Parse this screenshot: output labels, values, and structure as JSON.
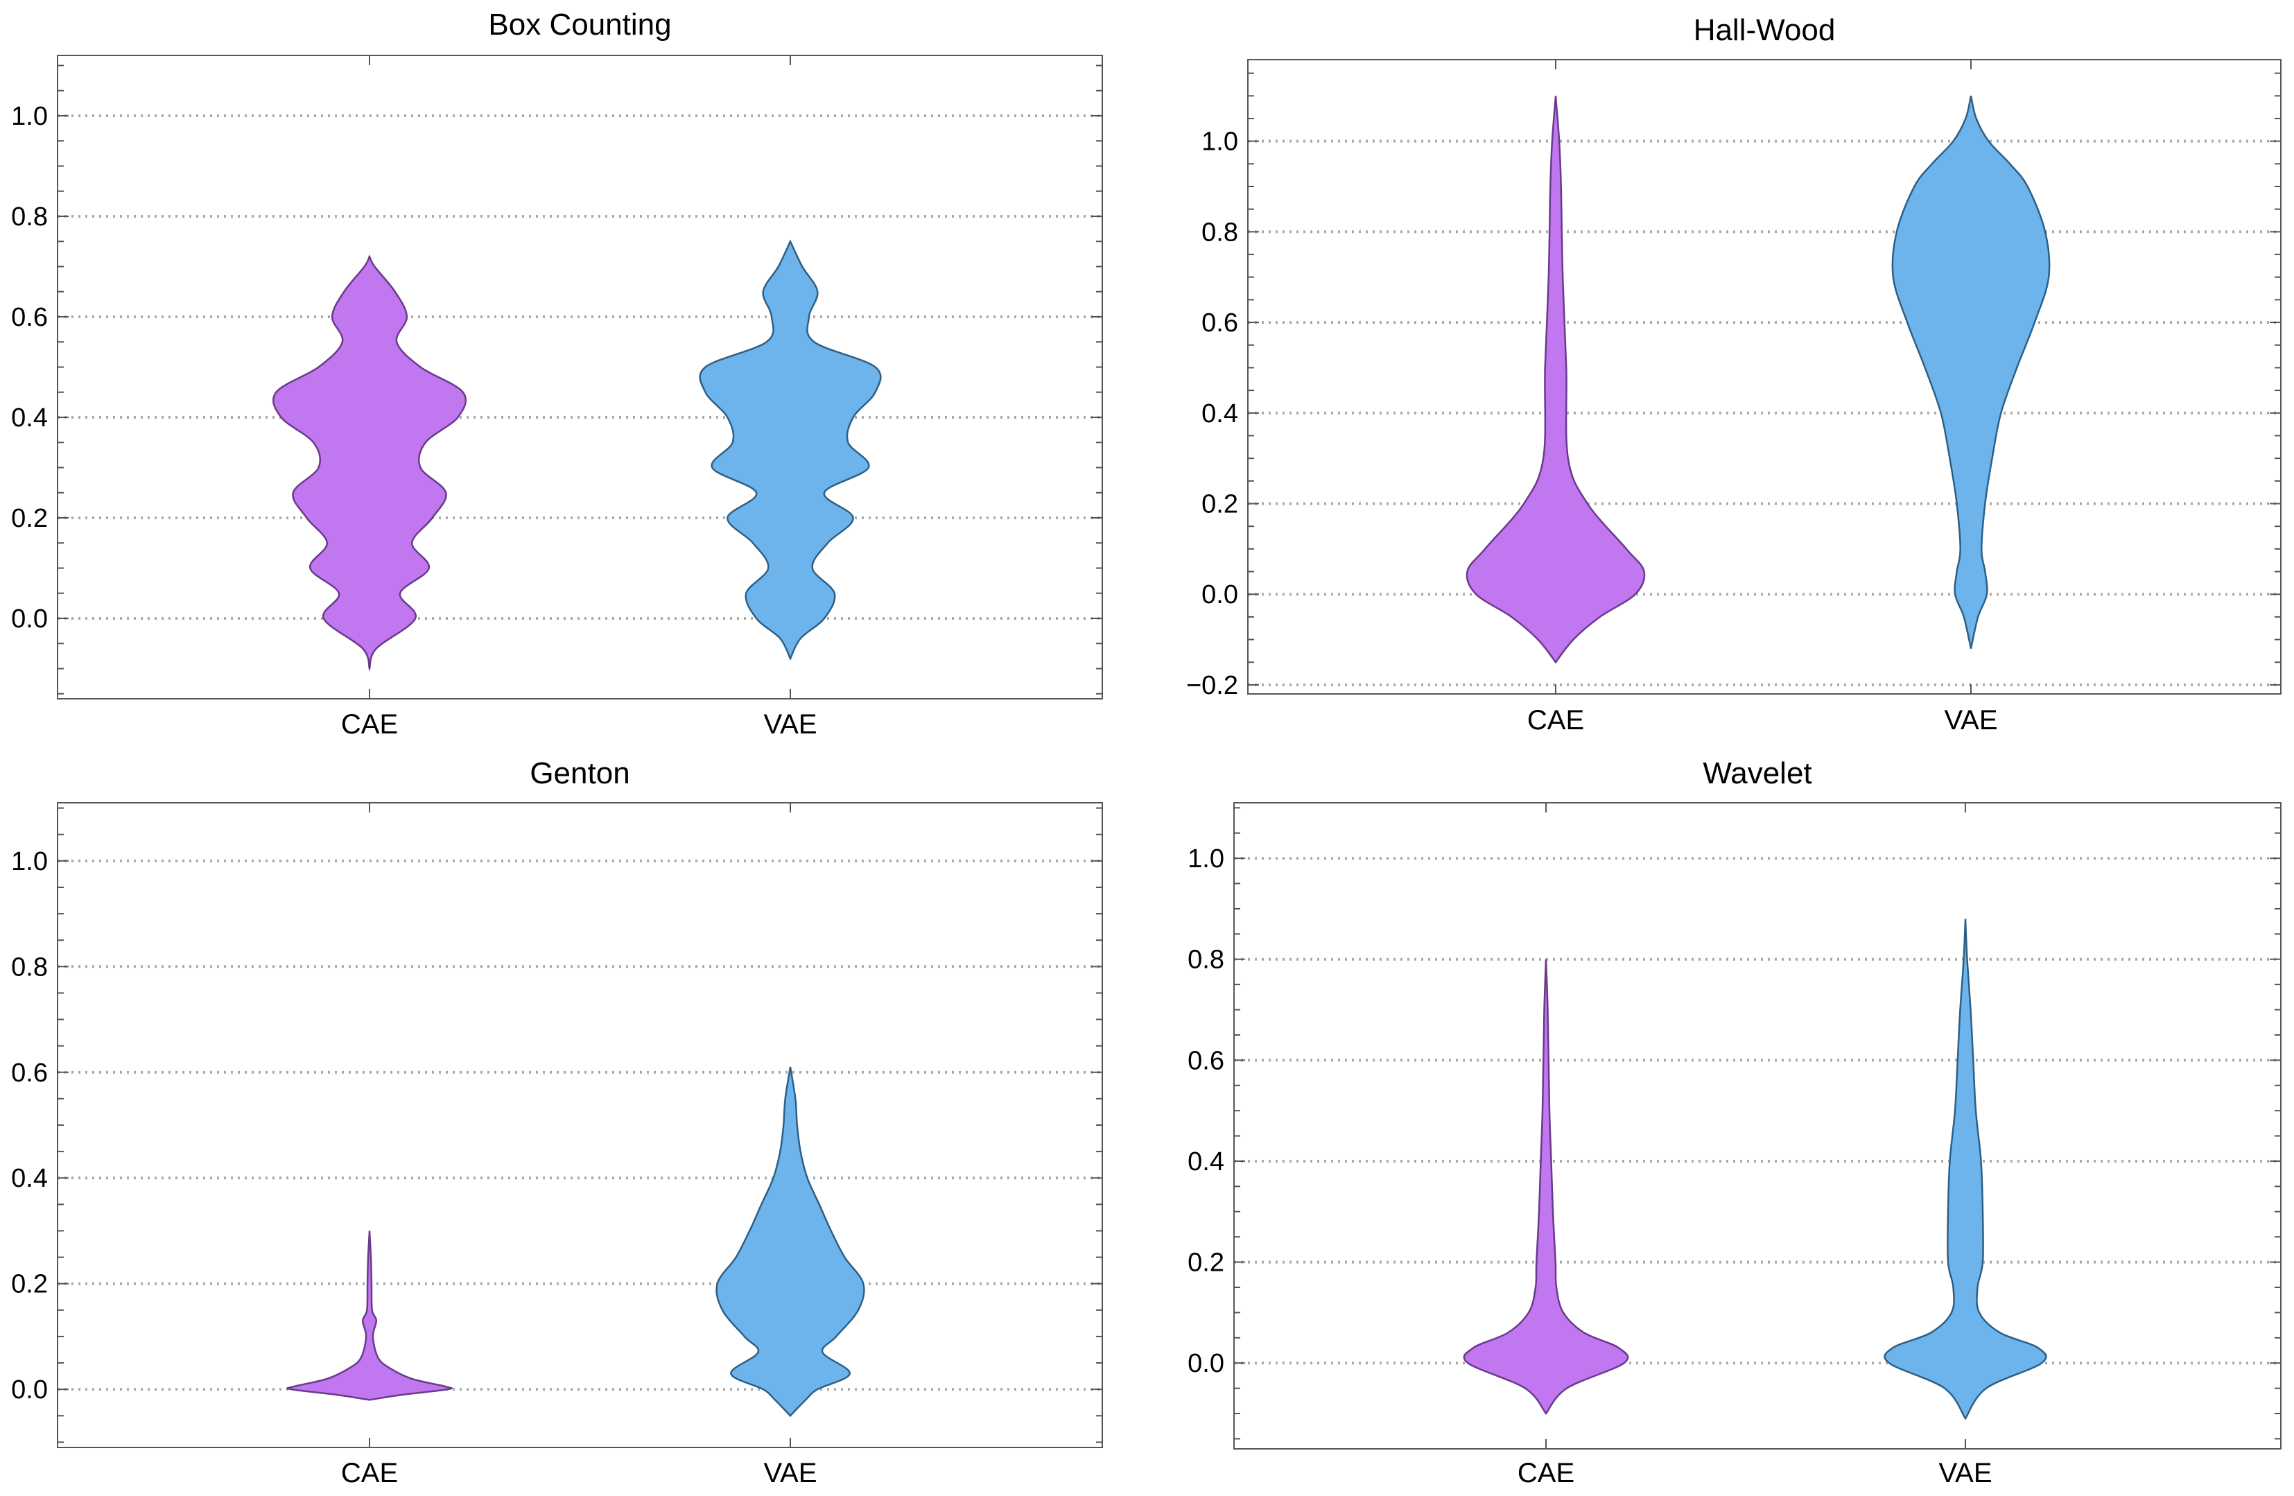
{
  "chart_data": [
    {
      "type": "violin",
      "title": "Box Counting",
      "categories": [
        "CAE",
        "VAE"
      ],
      "ylim": [
        -0.16,
        1.12
      ],
      "yticks": [
        0.0,
        0.2,
        0.4,
        0.6,
        0.8,
        1.0
      ],
      "ytick_labels": [
        "0.0",
        "0.2",
        "0.4",
        "0.6",
        "0.8",
        "1.0"
      ],
      "grid": true,
      "series": [
        {
          "name": "CAE",
          "color": "#c077f0",
          "stroke": "#6a3a8a",
          "profile": [
            [
              -0.1,
              0
            ],
            [
              -0.06,
              0.04
            ],
            [
              0.0,
              0.27
            ],
            [
              0.05,
              0.18
            ],
            [
              0.1,
              0.35
            ],
            [
              0.15,
              0.25
            ],
            [
              0.2,
              0.37
            ],
            [
              0.25,
              0.45
            ],
            [
              0.3,
              0.3
            ],
            [
              0.35,
              0.33
            ],
            [
              0.4,
              0.52
            ],
            [
              0.45,
              0.55
            ],
            [
              0.5,
              0.3
            ],
            [
              0.55,
              0.16
            ],
            [
              0.6,
              0.22
            ],
            [
              0.65,
              0.15
            ],
            [
              0.7,
              0.03
            ],
            [
              0.72,
              0
            ]
          ]
        },
        {
          "name": "VAE",
          "color": "#6eb4ec",
          "stroke": "#2d5f85",
          "profile": [
            [
              -0.08,
              0
            ],
            [
              -0.04,
              0.06
            ],
            [
              0.0,
              0.2
            ],
            [
              0.05,
              0.26
            ],
            [
              0.1,
              0.13
            ],
            [
              0.15,
              0.22
            ],
            [
              0.2,
              0.37
            ],
            [
              0.25,
              0.2
            ],
            [
              0.3,
              0.46
            ],
            [
              0.35,
              0.34
            ],
            [
              0.4,
              0.37
            ],
            [
              0.45,
              0.5
            ],
            [
              0.5,
              0.5
            ],
            [
              0.55,
              0.14
            ],
            [
              0.6,
              0.11
            ],
            [
              0.65,
              0.16
            ],
            [
              0.7,
              0.07
            ],
            [
              0.75,
              0
            ]
          ]
        }
      ]
    },
    {
      "type": "violin",
      "title": "Hall-Wood",
      "categories": [
        "CAE",
        "VAE"
      ],
      "ylim": [
        -0.22,
        1.18
      ],
      "yticks": [
        -0.2,
        0.0,
        0.2,
        0.4,
        0.6,
        0.8,
        1.0
      ],
      "ytick_labels": [
        "−0.2",
        "0.0",
        "0.2",
        "0.4",
        "0.6",
        "0.8",
        "1.0"
      ],
      "grid": true,
      "series": [
        {
          "name": "CAE",
          "color": "#c077f0",
          "stroke": "#6a3a8a",
          "profile": [
            [
              -0.15,
              0
            ],
            [
              -0.1,
              0.1
            ],
            [
              -0.05,
              0.25
            ],
            [
              0.0,
              0.45
            ],
            [
              0.05,
              0.5
            ],
            [
              0.1,
              0.4
            ],
            [
              0.2,
              0.18
            ],
            [
              0.3,
              0.07
            ],
            [
              0.5,
              0.06
            ],
            [
              0.7,
              0.04
            ],
            [
              0.9,
              0.03
            ],
            [
              1.0,
              0.02
            ],
            [
              1.1,
              0
            ]
          ]
        },
        {
          "name": "VAE",
          "color": "#6eb4ec",
          "stroke": "#2d5f85",
          "profile": [
            [
              -0.12,
              0
            ],
            [
              -0.05,
              0.04
            ],
            [
              0.0,
              0.09
            ],
            [
              0.05,
              0.08
            ],
            [
              0.1,
              0.06
            ],
            [
              0.2,
              0.08
            ],
            [
              0.3,
              0.12
            ],
            [
              0.4,
              0.17
            ],
            [
              0.5,
              0.26
            ],
            [
              0.6,
              0.36
            ],
            [
              0.7,
              0.44
            ],
            [
              0.8,
              0.42
            ],
            [
              0.9,
              0.32
            ],
            [
              0.95,
              0.22
            ],
            [
              1.0,
              0.1
            ],
            [
              1.05,
              0.03
            ],
            [
              1.1,
              0
            ]
          ]
        }
      ]
    },
    {
      "type": "violin",
      "title": "Genton",
      "categories": [
        "CAE",
        "VAE"
      ],
      "ylim": [
        -0.11,
        1.11
      ],
      "yticks": [
        0.0,
        0.2,
        0.4,
        0.6,
        0.8,
        1.0
      ],
      "ytick_labels": [
        "0.0",
        "0.2",
        "0.4",
        "0.6",
        "0.8",
        "1.0"
      ],
      "grid": true,
      "series": [
        {
          "name": "CAE",
          "color": "#c077f0",
          "stroke": "#6a3a8a",
          "profile": [
            [
              -0.02,
              0
            ],
            [
              -0.01,
              0.2
            ],
            [
              0.0,
              0.46
            ],
            [
              0.005,
              0.45
            ],
            [
              0.02,
              0.25
            ],
            [
              0.04,
              0.12
            ],
            [
              0.06,
              0.05
            ],
            [
              0.1,
              0.02
            ],
            [
              0.13,
              0.04
            ],
            [
              0.15,
              0.015
            ],
            [
              0.2,
              0.012
            ],
            [
              0.25,
              0.008
            ],
            [
              0.3,
              0
            ]
          ]
        },
        {
          "name": "VAE",
          "color": "#6eb4ec",
          "stroke": "#2d5f85",
          "profile": [
            [
              -0.05,
              0
            ],
            [
              -0.02,
              0.09
            ],
            [
              0.0,
              0.16
            ],
            [
              0.03,
              0.35
            ],
            [
              0.07,
              0.19
            ],
            [
              0.1,
              0.27
            ],
            [
              0.15,
              0.4
            ],
            [
              0.2,
              0.43
            ],
            [
              0.25,
              0.32
            ],
            [
              0.3,
              0.24
            ],
            [
              0.35,
              0.17
            ],
            [
              0.4,
              0.1
            ],
            [
              0.45,
              0.06
            ],
            [
              0.5,
              0.04
            ],
            [
              0.55,
              0.03
            ],
            [
              0.61,
              0
            ]
          ]
        }
      ]
    },
    {
      "type": "violin",
      "title": "Wavelet",
      "categories": [
        "CAE",
        "VAE"
      ],
      "ylim": [
        -0.17,
        1.11
      ],
      "yticks": [
        0.0,
        0.2,
        0.4,
        0.6,
        0.8,
        1.0
      ],
      "ytick_labels": [
        "0.0",
        "0.2",
        "0.4",
        "0.6",
        "0.8",
        "1.0"
      ],
      "grid": true,
      "series": [
        {
          "name": "CAE",
          "color": "#c077f0",
          "stroke": "#6a3a8a",
          "profile": [
            [
              -0.1,
              0
            ],
            [
              -0.05,
              0.12
            ],
            [
              0.0,
              0.45
            ],
            [
              0.03,
              0.42
            ],
            [
              0.06,
              0.22
            ],
            [
              0.1,
              0.1
            ],
            [
              0.15,
              0.06
            ],
            [
              0.2,
              0.055
            ],
            [
              0.3,
              0.04
            ],
            [
              0.4,
              0.03
            ],
            [
              0.5,
              0.02
            ],
            [
              0.6,
              0.015
            ],
            [
              0.7,
              0.01
            ],
            [
              0.8,
              0
            ]
          ]
        },
        {
          "name": "VAE",
          "color": "#6eb4ec",
          "stroke": "#2d5f85",
          "profile": [
            [
              -0.11,
              0
            ],
            [
              -0.05,
              0.12
            ],
            [
              0.0,
              0.44
            ],
            [
              0.03,
              0.42
            ],
            [
              0.06,
              0.2
            ],
            [
              0.1,
              0.08
            ],
            [
              0.15,
              0.07
            ],
            [
              0.2,
              0.1
            ],
            [
              0.3,
              0.1
            ],
            [
              0.4,
              0.09
            ],
            [
              0.5,
              0.06
            ],
            [
              0.6,
              0.045
            ],
            [
              0.7,
              0.03
            ],
            [
              0.8,
              0.01
            ],
            [
              0.88,
              0
            ]
          ]
        }
      ]
    }
  ]
}
